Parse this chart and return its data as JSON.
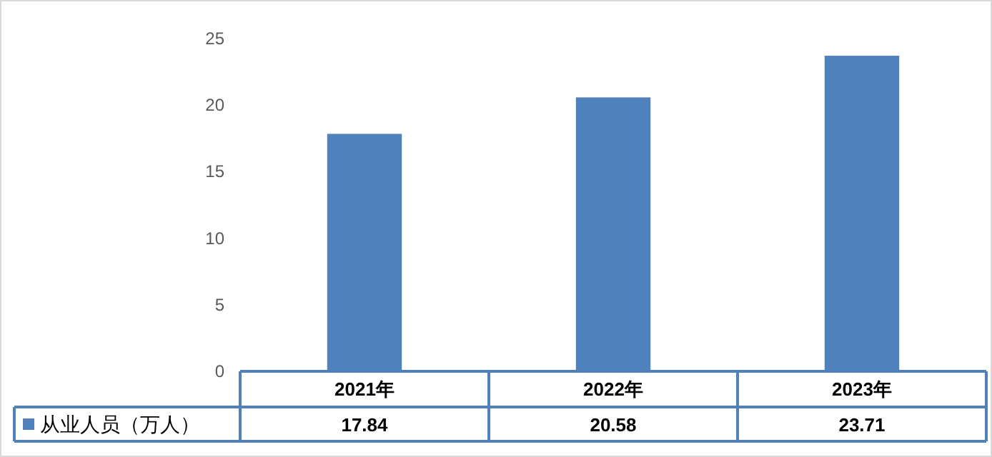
{
  "chart_data": {
    "type": "bar",
    "categories": [
      "2021年",
      "2022年",
      "2023年"
    ],
    "series": [
      {
        "name": "从业人员（万人）",
        "color": "#4f81bd",
        "values": [
          17.84,
          20.58,
          23.71
        ]
      }
    ],
    "ylim": [
      0,
      25
    ],
    "yticks": [
      0,
      5,
      10,
      15,
      20,
      25
    ],
    "data_labels": true,
    "legend": "bottom left",
    "grid": false
  }
}
